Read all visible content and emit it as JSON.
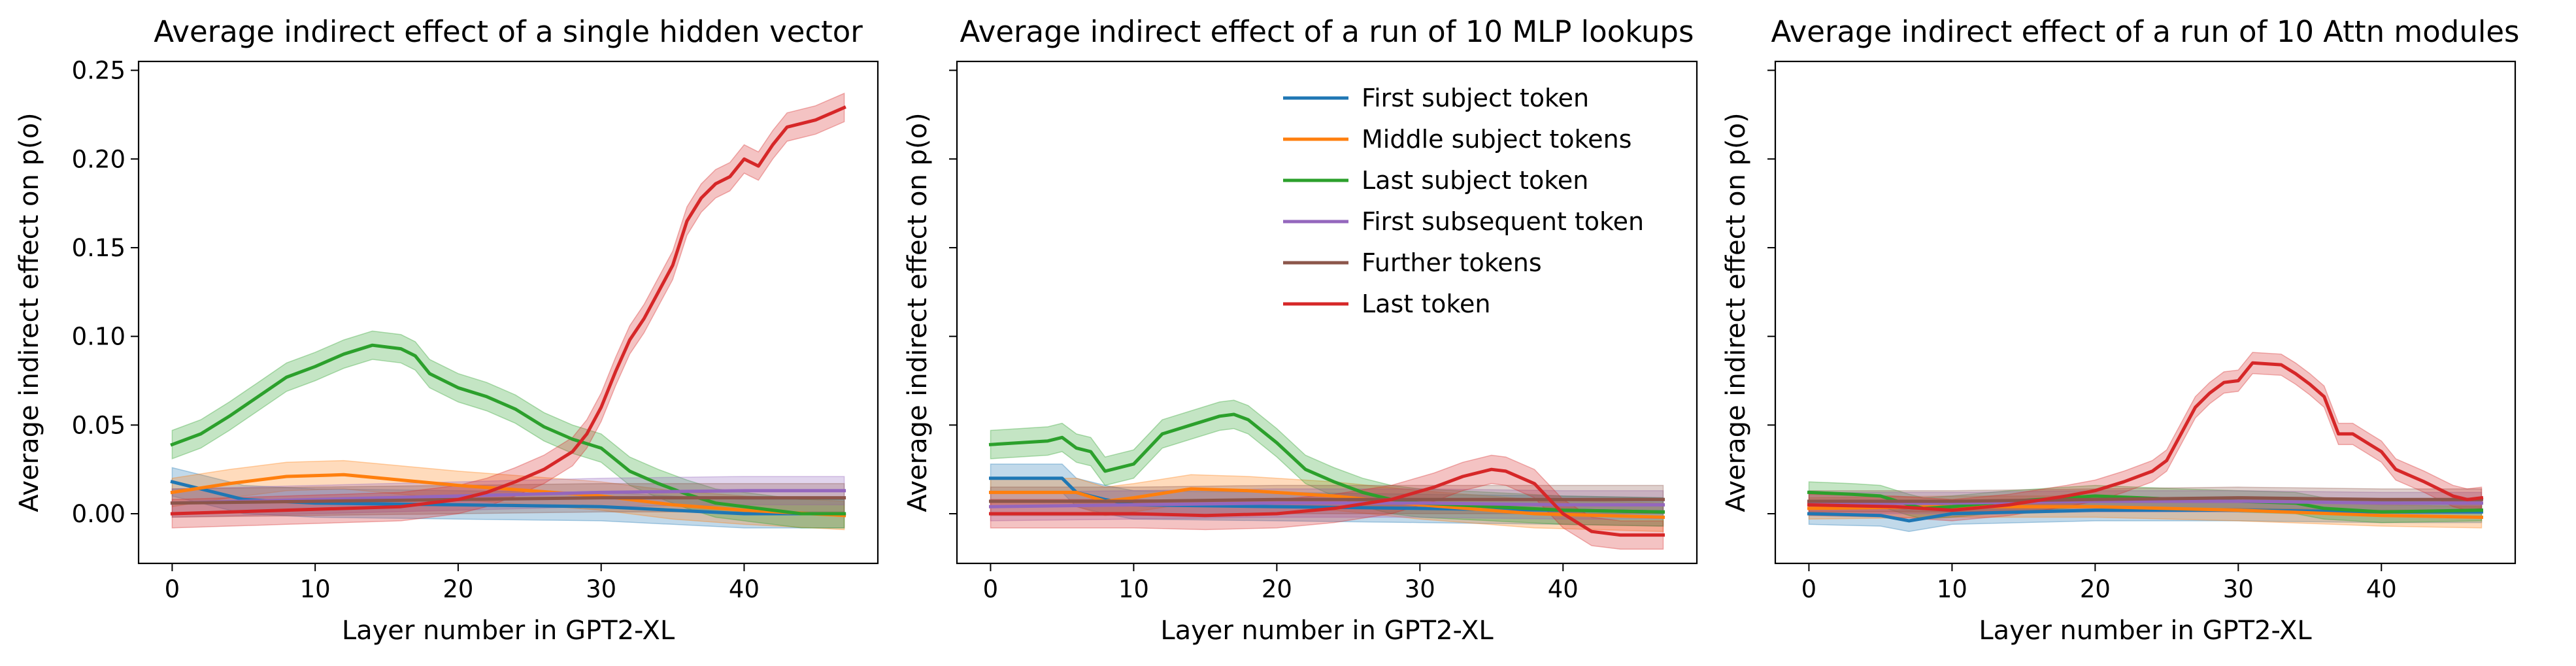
{
  "colors": {
    "first_subject": "#1f77b4",
    "middle_subject": "#ff7f0e",
    "last_subject": "#2ca02c",
    "first_subsequent": "#9467bd",
    "further": "#8c564b",
    "last_token": "#d62728"
  },
  "legend": {
    "placement": "upper-right of middle panel",
    "entries": [
      {
        "key": "first_subject",
        "label": "First subject token"
      },
      {
        "key": "middle_subject",
        "label": "Middle subject tokens"
      },
      {
        "key": "last_subject",
        "label": "Last subject token"
      },
      {
        "key": "first_subsequent",
        "label": "First subsequent token"
      },
      {
        "key": "further",
        "label": "Further tokens"
      },
      {
        "key": "last_token",
        "label": "Last token"
      }
    ]
  },
  "chart_data": [
    {
      "type": "line",
      "title": "Average indirect effect of a single hidden vector",
      "xlabel": "Layer number in GPT2-XL",
      "ylabel": "Average indirect effect on p(o)",
      "xlim": [
        -2.35,
        49.35
      ],
      "ylim": [
        -0.028,
        0.255
      ],
      "xticks": [
        0,
        10,
        20,
        30,
        40
      ],
      "yticks": [
        0.0,
        0.05,
        0.1,
        0.15,
        0.2,
        0.25
      ],
      "ytick_labels": [
        "0.00",
        "0.05",
        "0.10",
        "0.15",
        "0.20",
        "0.25"
      ],
      "show_ytick_labels": true,
      "band_halfwidth": 0.008,
      "series": [
        {
          "key": "first_subject",
          "points": [
            [
              0,
              0.018
            ],
            [
              5,
              0.008
            ],
            [
              10,
              0.006
            ],
            [
              20,
              0.005
            ],
            [
              30,
              0.004
            ],
            [
              35,
              0.002
            ],
            [
              40,
              0.0
            ],
            [
              47,
              0.0
            ]
          ]
        },
        {
          "key": "middle_subject",
          "points": [
            [
              0,
              0.012
            ],
            [
              4,
              0.017
            ],
            [
              8,
              0.021
            ],
            [
              12,
              0.022
            ],
            [
              16,
              0.019
            ],
            [
              20,
              0.016
            ],
            [
              25,
              0.013
            ],
            [
              30,
              0.01
            ],
            [
              35,
              0.005
            ],
            [
              40,
              0.002
            ],
            [
              47,
              -0.001
            ]
          ]
        },
        {
          "key": "last_subject",
          "points": [
            [
              0,
              0.039
            ],
            [
              2,
              0.045
            ],
            [
              4,
              0.055
            ],
            [
              6,
              0.066
            ],
            [
              8,
              0.077
            ],
            [
              10,
              0.083
            ],
            [
              12,
              0.09
            ],
            [
              14,
              0.095
            ],
            [
              16,
              0.093
            ],
            [
              17,
              0.089
            ],
            [
              18,
              0.079
            ],
            [
              20,
              0.071
            ],
            [
              22,
              0.066
            ],
            [
              24,
              0.059
            ],
            [
              26,
              0.049
            ],
            [
              28,
              0.042
            ],
            [
              30,
              0.037
            ],
            [
              32,
              0.024
            ],
            [
              34,
              0.017
            ],
            [
              36,
              0.011
            ],
            [
              38,
              0.006
            ],
            [
              40,
              0.004
            ],
            [
              42,
              0.002
            ],
            [
              44,
              0.0
            ],
            [
              47,
              0.0
            ]
          ]
        },
        {
          "key": "first_subsequent",
          "points": [
            [
              0,
              0.006
            ],
            [
              10,
              0.008
            ],
            [
              20,
              0.01
            ],
            [
              30,
              0.012
            ],
            [
              40,
              0.013
            ],
            [
              47,
              0.013
            ]
          ]
        },
        {
          "key": "further",
          "points": [
            [
              0,
              0.006
            ],
            [
              10,
              0.007
            ],
            [
              20,
              0.008
            ],
            [
              30,
              0.009
            ],
            [
              40,
              0.009
            ],
            [
              47,
              0.009
            ]
          ]
        },
        {
          "key": "last_token",
          "points": [
            [
              0,
              0.0
            ],
            [
              8,
              0.002
            ],
            [
              16,
              0.004
            ],
            [
              20,
              0.008
            ],
            [
              22,
              0.012
            ],
            [
              24,
              0.018
            ],
            [
              26,
              0.025
            ],
            [
              28,
              0.035
            ],
            [
              29,
              0.045
            ],
            [
              30,
              0.06
            ],
            [
              31,
              0.08
            ],
            [
              32,
              0.098
            ],
            [
              33,
              0.11
            ],
            [
              34,
              0.125
            ],
            [
              35,
              0.14
            ],
            [
              36,
              0.165
            ],
            [
              37,
              0.178
            ],
            [
              38,
              0.186
            ],
            [
              39,
              0.19
            ],
            [
              40,
              0.2
            ],
            [
              41,
              0.196
            ],
            [
              42,
              0.208
            ],
            [
              43,
              0.218
            ],
            [
              45,
              0.222
            ],
            [
              47,
              0.229
            ]
          ]
        }
      ]
    },
    {
      "type": "line",
      "title": "Average indirect effect of a run of 10 MLP lookups",
      "xlabel": "Layer number in GPT2-XL",
      "ylabel": "Average indirect effect on p(o)",
      "xlim": [
        -2.35,
        49.35
      ],
      "ylim": [
        -0.028,
        0.255
      ],
      "xticks": [
        0,
        10,
        20,
        30,
        40
      ],
      "yticks": [
        0.0,
        0.05,
        0.1,
        0.15,
        0.2,
        0.25
      ],
      "show_ytick_labels": false,
      "band_halfwidth": 0.008,
      "series": [
        {
          "key": "first_subject",
          "points": [
            [
              0,
              0.02
            ],
            [
              5,
              0.02
            ],
            [
              6,
              0.012
            ],
            [
              8,
              0.008
            ],
            [
              10,
              0.005
            ],
            [
              20,
              0.004
            ],
            [
              30,
              0.003
            ],
            [
              40,
              0.002
            ],
            [
              47,
              0.001
            ]
          ]
        },
        {
          "key": "middle_subject",
          "points": [
            [
              0,
              0.012
            ],
            [
              6,
              0.012
            ],
            [
              8,
              0.007
            ],
            [
              10,
              0.009
            ],
            [
              14,
              0.014
            ],
            [
              18,
              0.013
            ],
            [
              24,
              0.01
            ],
            [
              30,
              0.005
            ],
            [
              38,
              0.0
            ],
            [
              47,
              -0.002
            ]
          ]
        },
        {
          "key": "last_subject",
          "points": [
            [
              0,
              0.039
            ],
            [
              4,
              0.041
            ],
            [
              5,
              0.043
            ],
            [
              6,
              0.037
            ],
            [
              7,
              0.035
            ],
            [
              8,
              0.024
            ],
            [
              10,
              0.028
            ],
            [
              12,
              0.045
            ],
            [
              14,
              0.05
            ],
            [
              16,
              0.055
            ],
            [
              17,
              0.056
            ],
            [
              18,
              0.053
            ],
            [
              20,
              0.04
            ],
            [
              22,
              0.025
            ],
            [
              24,
              0.018
            ],
            [
              26,
              0.012
            ],
            [
              28,
              0.008
            ],
            [
              30,
              0.006
            ],
            [
              35,
              0.004
            ],
            [
              40,
              0.002
            ],
            [
              47,
              0.001
            ]
          ]
        },
        {
          "key": "first_subsequent",
          "points": [
            [
              0,
              0.004
            ],
            [
              10,
              0.005
            ],
            [
              20,
              0.006
            ],
            [
              30,
              0.006
            ],
            [
              40,
              0.005
            ],
            [
              47,
              0.005
            ]
          ]
        },
        {
          "key": "further",
          "points": [
            [
              0,
              0.007
            ],
            [
              10,
              0.007
            ],
            [
              20,
              0.008
            ],
            [
              30,
              0.008
            ],
            [
              40,
              0.008
            ],
            [
              47,
              0.008
            ]
          ]
        },
        {
          "key": "last_token",
          "points": [
            [
              0,
              0.0
            ],
            [
              10,
              0.0
            ],
            [
              15,
              -0.001
            ],
            [
              20,
              0.0
            ],
            [
              24,
              0.003
            ],
            [
              28,
              0.008
            ],
            [
              31,
              0.015
            ],
            [
              33,
              0.021
            ],
            [
              35,
              0.025
            ],
            [
              36,
              0.024
            ],
            [
              38,
              0.017
            ],
            [
              40,
              0.0
            ],
            [
              42,
              -0.01
            ],
            [
              44,
              -0.012
            ],
            [
              47,
              -0.012
            ]
          ]
        }
      ]
    },
    {
      "type": "line",
      "title": "Average indirect effect of a run of 10 Attn modules",
      "xlabel": "Layer number in GPT2-XL",
      "ylabel": "Average indirect effect on p(o)",
      "xlim": [
        -2.35,
        49.35
      ],
      "ylim": [
        -0.028,
        0.255
      ],
      "xticks": [
        0,
        10,
        20,
        30,
        40
      ],
      "yticks": [
        0.0,
        0.05,
        0.1,
        0.15,
        0.2,
        0.25
      ],
      "show_ytick_labels": false,
      "band_halfwidth": 0.006,
      "series": [
        {
          "key": "first_subject",
          "points": [
            [
              0,
              0.0
            ],
            [
              5,
              -0.001
            ],
            [
              7,
              -0.004
            ],
            [
              10,
              0.0
            ],
            [
              20,
              0.002
            ],
            [
              30,
              0.002
            ],
            [
              40,
              0.001
            ],
            [
              47,
              0.001
            ]
          ]
        },
        {
          "key": "middle_subject",
          "points": [
            [
              0,
              0.003
            ],
            [
              10,
              0.004
            ],
            [
              20,
              0.004
            ],
            [
              30,
              0.002
            ],
            [
              40,
              -0.001
            ],
            [
              47,
              -0.002
            ]
          ]
        },
        {
          "key": "last_subject",
          "points": [
            [
              0,
              0.012
            ],
            [
              3,
              0.011
            ],
            [
              5,
              0.01
            ],
            [
              7,
              0.005
            ],
            [
              8,
              0.003
            ],
            [
              10,
              0.004
            ],
            [
              14,
              0.007
            ],
            [
              20,
              0.01
            ],
            [
              26,
              0.008
            ],
            [
              30,
              0.007
            ],
            [
              34,
              0.006
            ],
            [
              36,
              0.003
            ],
            [
              40,
              0.001
            ],
            [
              47,
              0.002
            ]
          ]
        },
        {
          "key": "first_subsequent",
          "points": [
            [
              0,
              0.006
            ],
            [
              10,
              0.006
            ],
            [
              20,
              0.007
            ],
            [
              30,
              0.007
            ],
            [
              40,
              0.006
            ],
            [
              47,
              0.006
            ]
          ]
        },
        {
          "key": "further",
          "points": [
            [
              0,
              0.007
            ],
            [
              10,
              0.007
            ],
            [
              20,
              0.008
            ],
            [
              30,
              0.009
            ],
            [
              40,
              0.008
            ],
            [
              47,
              0.008
            ]
          ]
        },
        {
          "key": "last_token",
          "points": [
            [
              0,
              0.005
            ],
            [
              6,
              0.004
            ],
            [
              10,
              0.002
            ],
            [
              14,
              0.005
            ],
            [
              18,
              0.01
            ],
            [
              20,
              0.013
            ],
            [
              22,
              0.018
            ],
            [
              24,
              0.024
            ],
            [
              25,
              0.03
            ],
            [
              26,
              0.045
            ],
            [
              27,
              0.06
            ],
            [
              28,
              0.068
            ],
            [
              29,
              0.074
            ],
            [
              30,
              0.075
            ],
            [
              31,
              0.085
            ],
            [
              33,
              0.084
            ],
            [
              34,
              0.079
            ],
            [
              35,
              0.073
            ],
            [
              36,
              0.066
            ],
            [
              37,
              0.045
            ],
            [
              38,
              0.045
            ],
            [
              39,
              0.04
            ],
            [
              40,
              0.035
            ],
            [
              41,
              0.025
            ],
            [
              43,
              0.018
            ],
            [
              45,
              0.01
            ],
            [
              46,
              0.008
            ],
            [
              47,
              0.009
            ]
          ]
        }
      ]
    }
  ]
}
